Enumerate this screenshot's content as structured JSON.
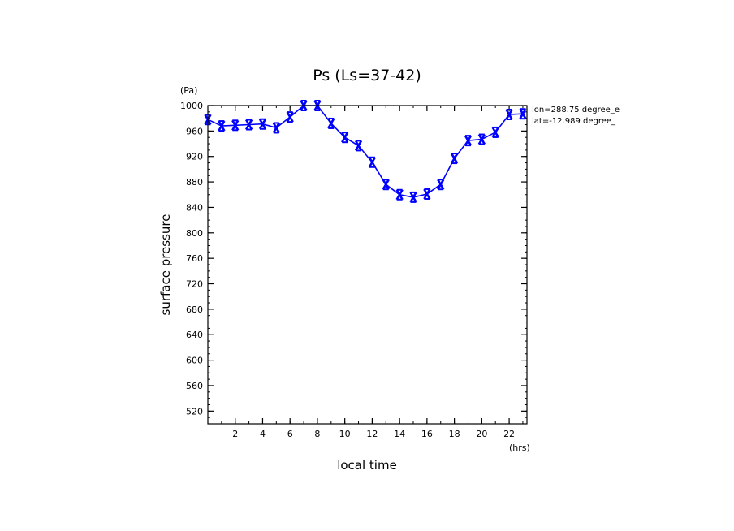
{
  "chart_data": {
    "type": "line",
    "title": "Ps (Ls=37-42)",
    "xlabel": "local time",
    "ylabel": "surface pressure",
    "x_unit": "(hrs)",
    "y_unit": "(Pa)",
    "xlim": [
      0,
      23.3
    ],
    "ylim": [
      500,
      1000
    ],
    "x_ticks": [
      2,
      4,
      6,
      8,
      10,
      12,
      14,
      16,
      18,
      20,
      22
    ],
    "y_ticks": [
      520,
      560,
      600,
      640,
      680,
      720,
      760,
      800,
      840,
      880,
      920,
      960,
      1000
    ],
    "annotations": [
      "lon=288.75 degree_e",
      "lat=-12.989 degree_"
    ],
    "grid": false,
    "series": [
      {
        "marker": "x",
        "color": "#0000ff",
        "x": [
          0,
          1,
          2,
          3,
          4,
          5,
          6,
          7,
          8,
          9,
          10,
          11,
          12,
          13,
          14,
          15,
          16,
          17,
          18,
          19,
          20,
          21,
          22,
          23
        ],
        "y": [
          978,
          968,
          969,
          970,
          971,
          965,
          982,
          1000,
          1000,
          972,
          950,
          937,
          911,
          876,
          860,
          856,
          861,
          876,
          917,
          945,
          947,
          958,
          986,
          987
        ]
      }
    ]
  }
}
